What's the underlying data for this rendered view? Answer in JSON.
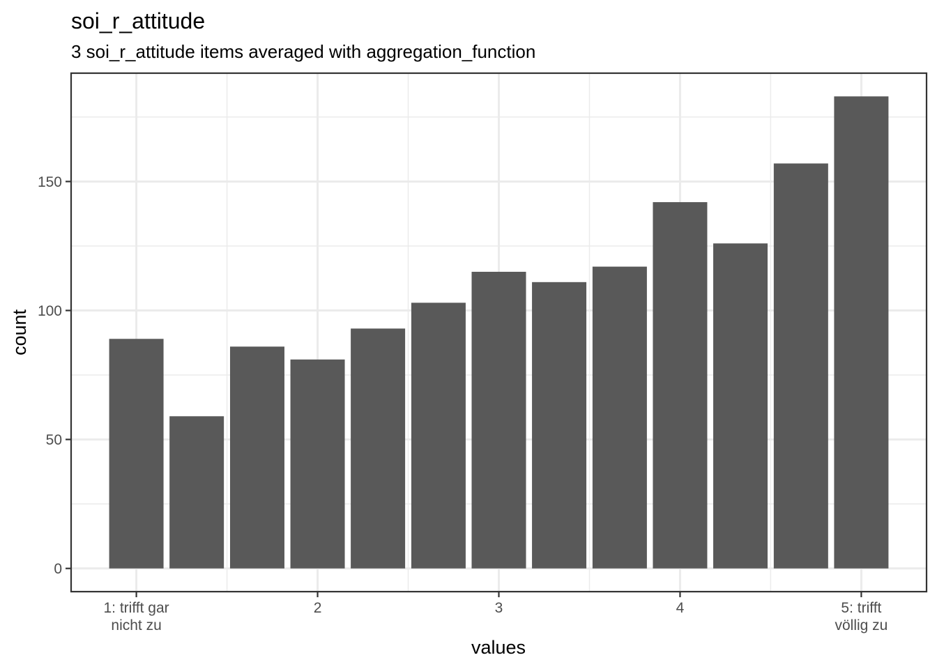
{
  "chart_data": {
    "type": "bar",
    "title": "soi_r_attitude",
    "subtitle": "3 soi_r_attitude items averaged with aggregation_function",
    "xlabel": "values",
    "ylabel": "count",
    "x": [
      1,
      1.333,
      1.667,
      2,
      2.333,
      2.667,
      3,
      3.333,
      3.667,
      4,
      4.333,
      4.667,
      5
    ],
    "values": [
      89,
      59,
      86,
      81,
      93,
      103,
      115,
      111,
      117,
      142,
      126,
      157,
      183
    ],
    "xlim": [
      0.64,
      5.36
    ],
    "ylim": [
      -9,
      192
    ],
    "x_ticks": [
      {
        "value": 1,
        "label": [
          "1: trifft gar",
          "nicht zu"
        ]
      },
      {
        "value": 2,
        "label": [
          "2"
        ]
      },
      {
        "value": 3,
        "label": [
          "3"
        ]
      },
      {
        "value": 4,
        "label": [
          "4"
        ]
      },
      {
        "value": 5,
        "label": [
          "5: trifft",
          "völlig zu"
        ]
      }
    ],
    "y_ticks": [
      0,
      50,
      100,
      150
    ],
    "x_minor_grid": [
      1.5,
      2.5,
      3.5,
      4.5
    ],
    "y_minor_grid": [
      25,
      75,
      125,
      175
    ],
    "grid": true,
    "legend": "none",
    "colors": {
      "bar": "#595959",
      "grid": "#ebebeb",
      "axis_text": "#4d4d4d",
      "border": "#333333"
    }
  }
}
